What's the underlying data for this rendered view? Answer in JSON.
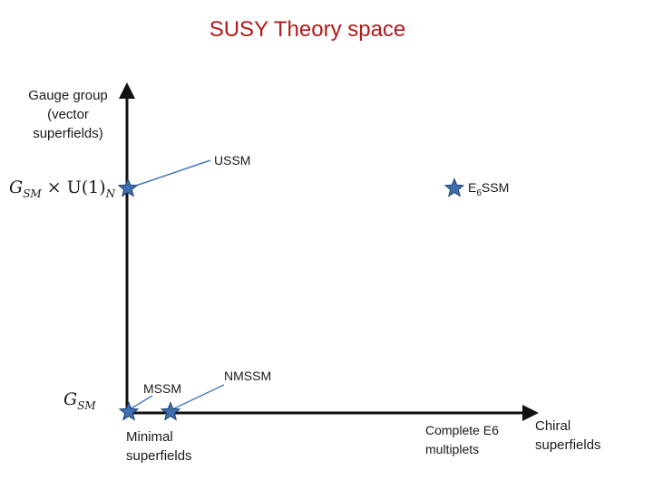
{
  "title": "SUSY Theory space",
  "y_axis_label": [
    "Gauge group",
    "(vector",
    "superfields)"
  ],
  "x_axis_label": [
    "Chiral",
    "superfields"
  ],
  "y_ticks": {
    "top_main": "G",
    "top_sub": "SM",
    "top_tail": " × U(1)",
    "top_tail_sub": "N",
    "bottom_main": "G",
    "bottom_sub": "SM"
  },
  "x_ticks": {
    "left": [
      "Minimal",
      "superfields"
    ],
    "right": [
      "Complete E6",
      "multiplets"
    ]
  },
  "models": {
    "ussm": "USSM",
    "e6ssm_prefix": "E",
    "e6ssm_sub": "6",
    "e6ssm_suffix": "SSM",
    "mssm": "MSSM",
    "nmssm": "NMSSM"
  },
  "colors": {
    "title": "#b11a1a",
    "axis": "#111111",
    "star_fill": "#3f6fb0",
    "star_stroke": "#1f3f6e",
    "pointer_line": "#4a7ab8"
  }
}
